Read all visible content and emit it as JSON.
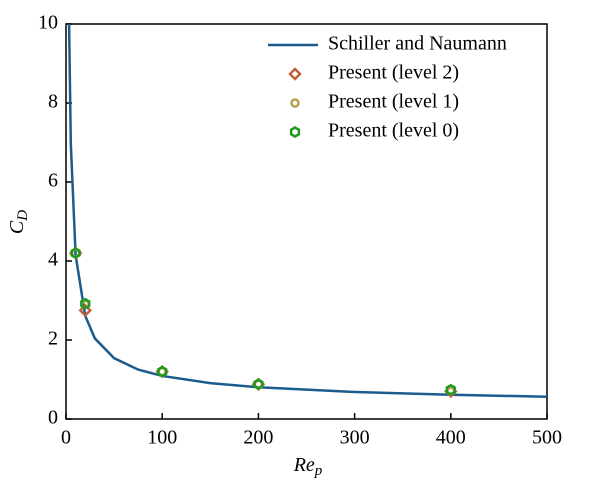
{
  "chart_data": {
    "type": "line",
    "xlabel": [
      "Re",
      "p"
    ],
    "ylabel": [
      "C",
      "D"
    ],
    "xlim": [
      0,
      500
    ],
    "xticks": [
      0,
      100,
      200,
      300,
      400,
      500
    ],
    "ylim": [
      0,
      10
    ],
    "yticks": [
      0,
      2,
      4,
      6,
      8,
      10
    ],
    "legend": "upper right",
    "series": [
      {
        "name": "Schiller and Naumann",
        "mode": "line",
        "color": "#1a5c8e",
        "x": [
          3.2,
          5,
          10,
          20,
          30,
          50,
          75,
          100,
          150,
          200,
          300,
          400,
          500
        ],
        "values": [
          10.0,
          6.97,
          4.15,
          2.61,
          2.04,
          1.54,
          1.25,
          1.09,
          0.909,
          0.804,
          0.685,
          0.614,
          0.564
        ]
      },
      {
        "name": "Present (level 2)",
        "mode": "scatter",
        "marker": "diamond",
        "color": "#c0603a",
        "x": [
          10,
          20,
          100,
          200,
          400
        ],
        "values": [
          4.2,
          2.75,
          1.2,
          0.88,
          0.7
        ]
      },
      {
        "name": "Present (level 1)",
        "mode": "scatter",
        "marker": "circle",
        "color": "#b5a050",
        "x": [
          10,
          20,
          100,
          200,
          400
        ],
        "values": [
          4.2,
          2.9,
          1.2,
          0.88,
          0.72
        ]
      },
      {
        "name": "Present (level 0)",
        "mode": "scatter",
        "marker": "hexagon",
        "color": "#1e9a1e",
        "x": [
          10,
          20,
          100,
          200,
          400
        ],
        "values": [
          4.2,
          2.92,
          1.2,
          0.88,
          0.74
        ]
      }
    ]
  }
}
